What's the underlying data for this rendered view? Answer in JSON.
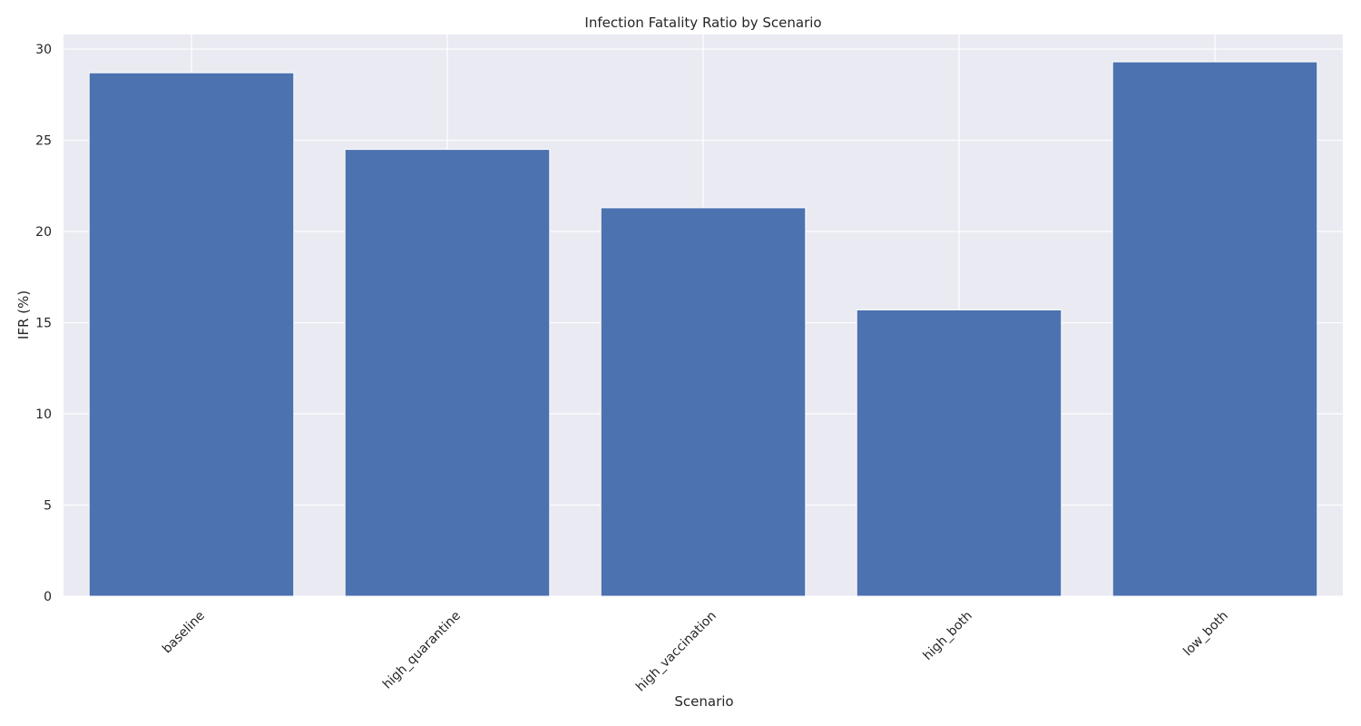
{
  "chart_data": {
    "type": "bar",
    "title": "Infection Fatality Ratio by Scenario",
    "xlabel": "Scenario",
    "ylabel": "IFR (%)",
    "categories": [
      "baseline",
      "high_quarantine",
      "high_vaccination",
      "high_both",
      "low_both"
    ],
    "values": [
      28.7,
      24.5,
      21.3,
      15.7,
      29.3
    ],
    "ylim": [
      0,
      30.8
    ],
    "yticks": [
      "0",
      "5",
      "10",
      "15",
      "20",
      "25",
      "30"
    ],
    "grid": true,
    "legend": "none",
    "colors": {
      "bar": "#4c72b0",
      "plot_background": "#eaeaf2",
      "grid": "#ffffff"
    }
  }
}
